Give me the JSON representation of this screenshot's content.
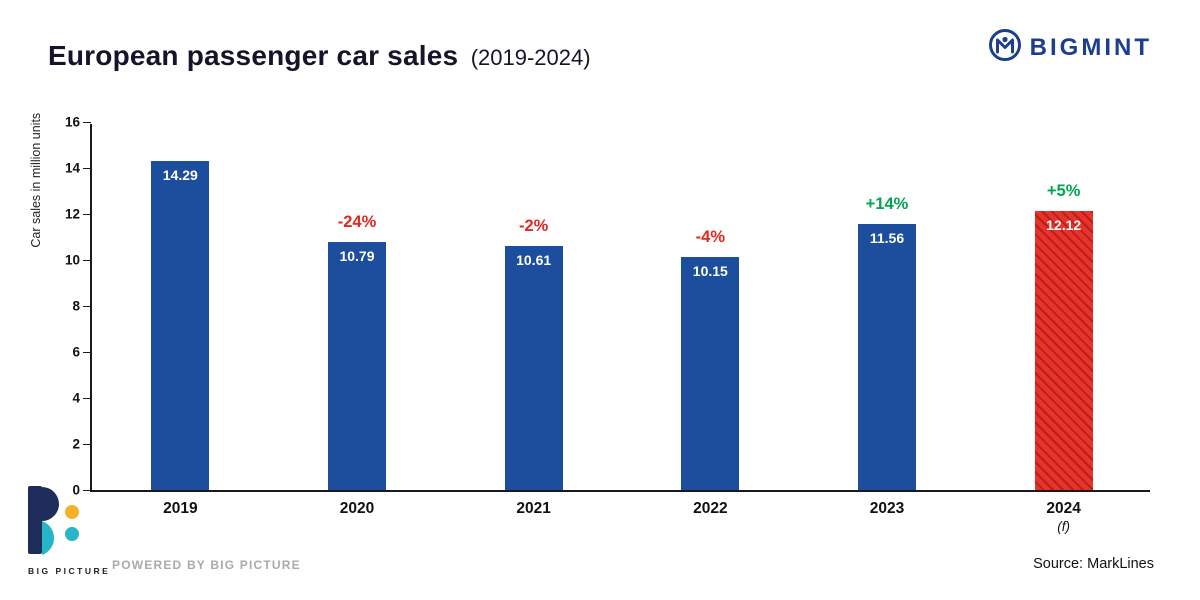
{
  "header": {
    "title": "European passenger car sales",
    "subtitle": "(2019-2024)",
    "brand": "BIGMINT"
  },
  "chart_data": {
    "type": "bar",
    "title": "European passenger car sales (2019-2024)",
    "xlabel": "",
    "ylabel": "Car sales in million units",
    "ylim": [
      0,
      16
    ],
    "ytick_step": 2,
    "grid": false,
    "legend": false,
    "categories": [
      "2019",
      "2020",
      "2021",
      "2022",
      "2023",
      "2024"
    ],
    "category_notes": [
      "",
      "",
      "",
      "",
      "",
      "(f)"
    ],
    "values": [
      14.29,
      10.79,
      10.61,
      10.15,
      11.56,
      12.12
    ],
    "value_labels": [
      "14.29",
      "10.79",
      "10.61",
      "10.15",
      "11.56",
      "12.12"
    ],
    "pct_labels": [
      "",
      "-24%",
      "-2%",
      "-4%",
      "+14%",
      "+5%"
    ],
    "pct_colors": [
      "",
      "#e52620",
      "#e52620",
      "#e52620",
      "#00a551",
      "#00a551"
    ],
    "bar_color": "#1c4e9d",
    "forecast_color": "#e8322a",
    "forecast_index": 5
  },
  "footer": {
    "logo_text": "BIG PICTURE",
    "powered_by": "POWERED BY BIG PICTURE",
    "source": "Source: MarkLines"
  }
}
